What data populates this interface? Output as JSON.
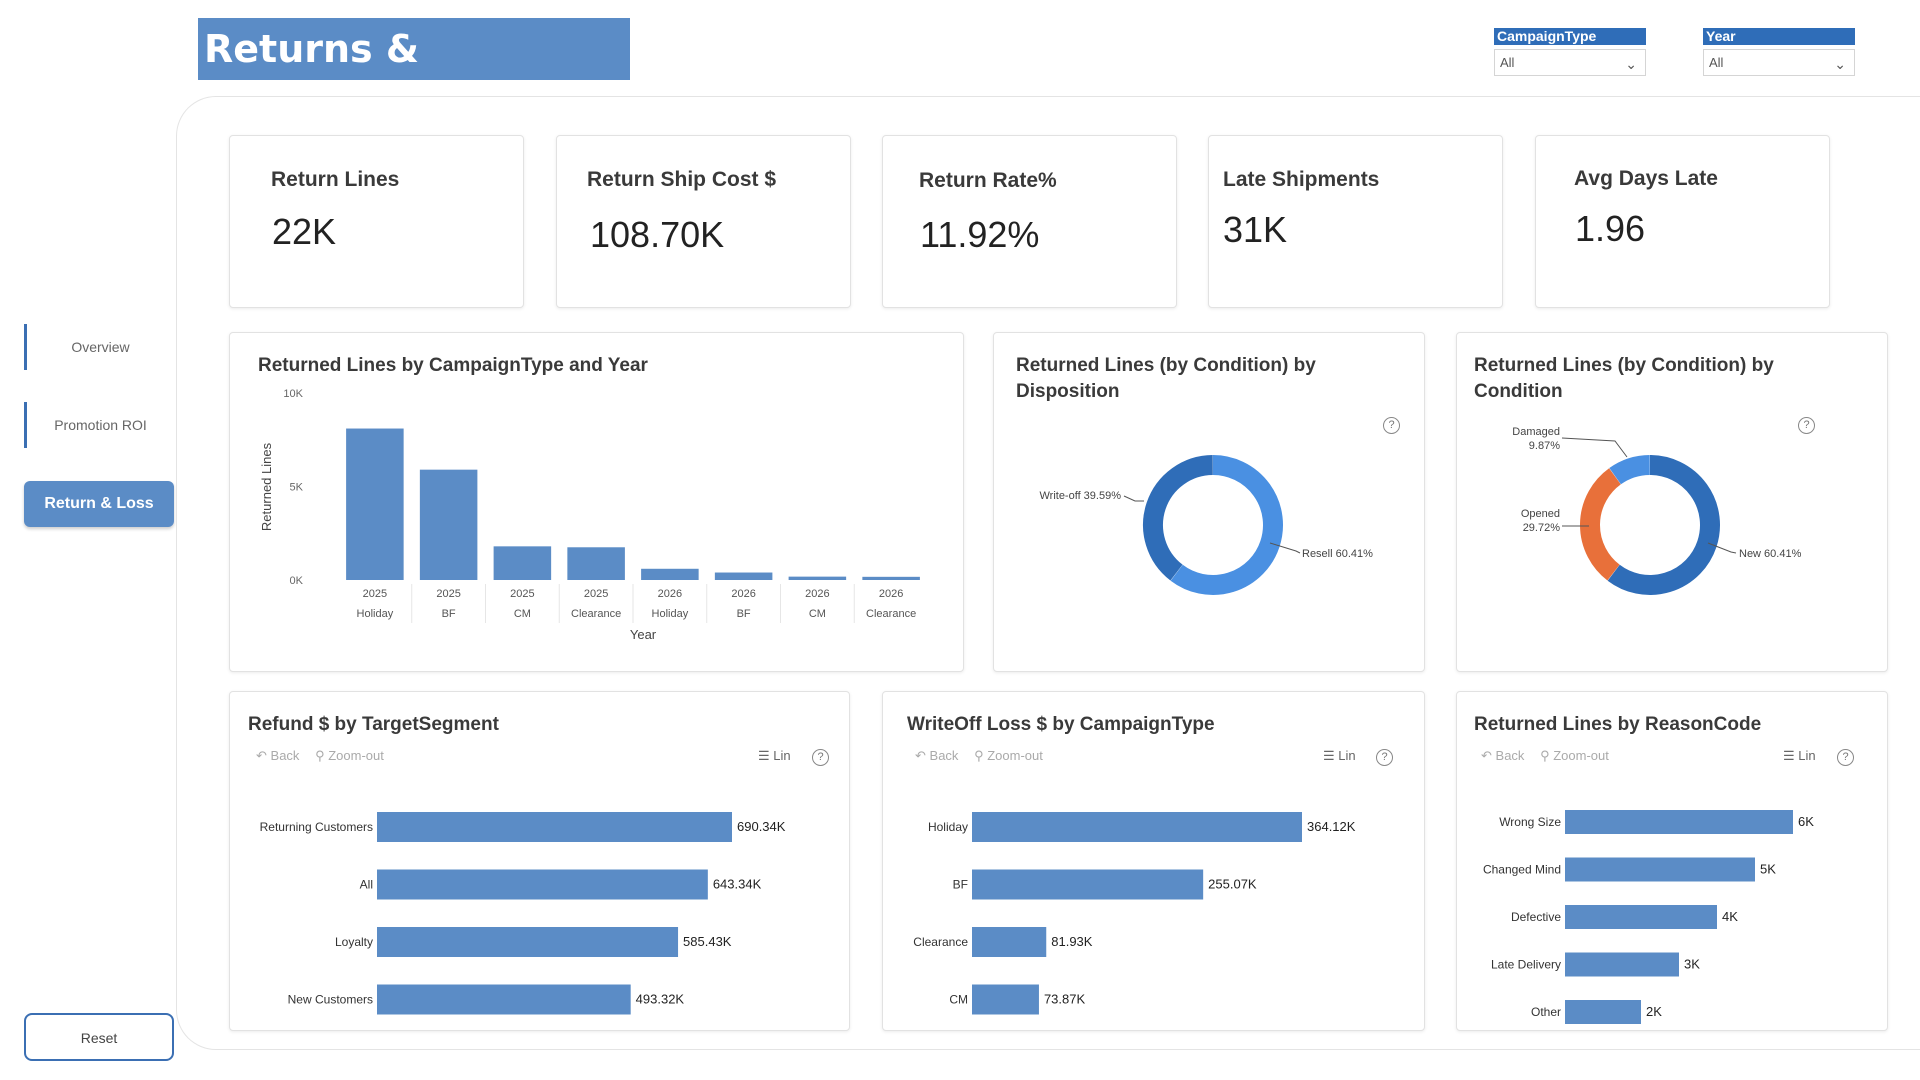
{
  "title": "Returns & Disposals",
  "slicers": [
    {
      "header": "CampaignType",
      "value": "All"
    },
    {
      "header": "Year",
      "value": "All"
    }
  ],
  "nav": {
    "overview": "Overview",
    "promotion_roi": "Promotion ROI",
    "return_loss": "Return & Loss",
    "reset": "Reset"
  },
  "kpis": [
    {
      "label": "Return Lines",
      "value": "22K"
    },
    {
      "label": "Return Ship Cost $",
      "value": "108.70K"
    },
    {
      "label": "Return Rate%",
      "value": "11.92%"
    },
    {
      "label": "Late Shipments",
      "value": "31K"
    },
    {
      "label": "Avg Days Late",
      "value": "1.96"
    }
  ],
  "toolbar": {
    "back": "Back",
    "zoom_out": "Zoom-out",
    "lin": "Lin",
    "help": "?"
  },
  "chart_data": [
    {
      "type": "bar",
      "title": "Returned Lines by CampaignType and Year",
      "xlabel": "Year",
      "ylabel": "Returned Lines",
      "categories": [
        [
          "2025",
          "Holiday"
        ],
        [
          "2025",
          "BF"
        ],
        [
          "2025",
          "CM"
        ],
        [
          "2025",
          "Clearance"
        ],
        [
          "2026",
          "Holiday"
        ],
        [
          "2026",
          "BF"
        ],
        [
          "2026",
          "CM"
        ],
        [
          "2026",
          "Clearance"
        ]
      ],
      "values": [
        8100,
        5900,
        1800,
        1750,
        600,
        400,
        180,
        170
      ],
      "yticks": [
        "0K",
        "5K",
        "10K"
      ],
      "ylim": [
        0,
        10000
      ],
      "color": "#5b8cc6"
    },
    {
      "type": "pie",
      "title": "Returned Lines (by Condition) by Disposition",
      "slices": [
        {
          "label": "Resell 60.41%",
          "value": 60.41,
          "color": "#4a90e2"
        },
        {
          "label": "Write-off 39.59%",
          "value": 39.59,
          "color": "#2f6db8"
        }
      ]
    },
    {
      "type": "pie",
      "title": "Returned Lines (by Condition) by Condition",
      "slices": [
        {
          "label": "New 60.41%",
          "value": 60.41,
          "color": "#2f6db8"
        },
        {
          "label": "Opened 29.72%",
          "value": 29.72,
          "color": "#e8703a"
        },
        {
          "label": "Damaged 9.87%",
          "value": 9.87,
          "color": "#4a90e2"
        }
      ]
    },
    {
      "type": "bar",
      "orientation": "horizontal",
      "title": "Refund $ by TargetSegment",
      "categories": [
        "Returning Customers",
        "All",
        "Loyalty",
        "New Customers"
      ],
      "values": [
        690.34,
        643.34,
        585.43,
        493.32
      ],
      "labels": [
        "690.34K",
        "643.34K",
        "585.43K",
        "493.32K"
      ],
      "unit": "K",
      "color": "#5b8cc6"
    },
    {
      "type": "bar",
      "orientation": "horizontal",
      "title": "WriteOff Loss $ by CampaignType",
      "categories": [
        "Holiday",
        "BF",
        "Clearance",
        "CM"
      ],
      "values": [
        364.12,
        255.07,
        81.93,
        73.87
      ],
      "labels": [
        "364.12K",
        "255.07K",
        "81.93K",
        "73.87K"
      ],
      "unit": "K",
      "color": "#5b8cc6"
    },
    {
      "type": "bar",
      "orientation": "horizontal",
      "title": "Returned Lines by ReasonCode",
      "categories": [
        "Wrong Size",
        "Changed Mind",
        "Defective",
        "Late Delivery",
        "Other"
      ],
      "values": [
        6,
        5,
        4,
        3,
        2
      ],
      "labels": [
        "6K",
        "5K",
        "4K",
        "3K",
        "2K"
      ],
      "unit": "K",
      "color": "#5b8cc6"
    }
  ]
}
